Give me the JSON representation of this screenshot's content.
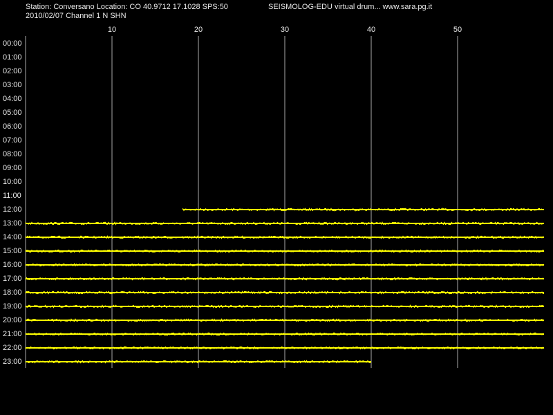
{
  "chart_data": {
    "type": "helicorder",
    "title": "Station: Conversano Location: CO 40.9712 17.1028 SPS:50",
    "subtitle": "2010/02/07  Channel 1 N SHN",
    "header_right": "SEISMOLOG-EDU virtual drum... www.sara.pg.it",
    "categories": [
      "00:00",
      "01:00",
      "02:00",
      "03:00",
      "04:00",
      "05:00",
      "06:00",
      "07:00",
      "08:00",
      "09:00",
      "10:00",
      "11:00",
      "12:00",
      "13:00",
      "14:00",
      "15:00",
      "16:00",
      "17:00",
      "18:00",
      "19:00",
      "20:00",
      "21:00",
      "22:00",
      "23:00"
    ],
    "start": [
      null,
      null,
      null,
      null,
      null,
      null,
      null,
      null,
      null,
      null,
      null,
      null,
      18.2,
      0,
      0,
      0,
      0,
      0,
      0,
      0,
      0,
      0,
      0,
      0
    ],
    "end": [
      null,
      null,
      null,
      null,
      null,
      null,
      null,
      null,
      null,
      null,
      null,
      null,
      60,
      60,
      60,
      60,
      60,
      60,
      60,
      60,
      60,
      60,
      60,
      40
    ],
    "color": "#ffff00",
    "xlim": [
      0,
      60
    ],
    "xticks": [
      10,
      20,
      30,
      40,
      50
    ],
    "grid": true
  }
}
